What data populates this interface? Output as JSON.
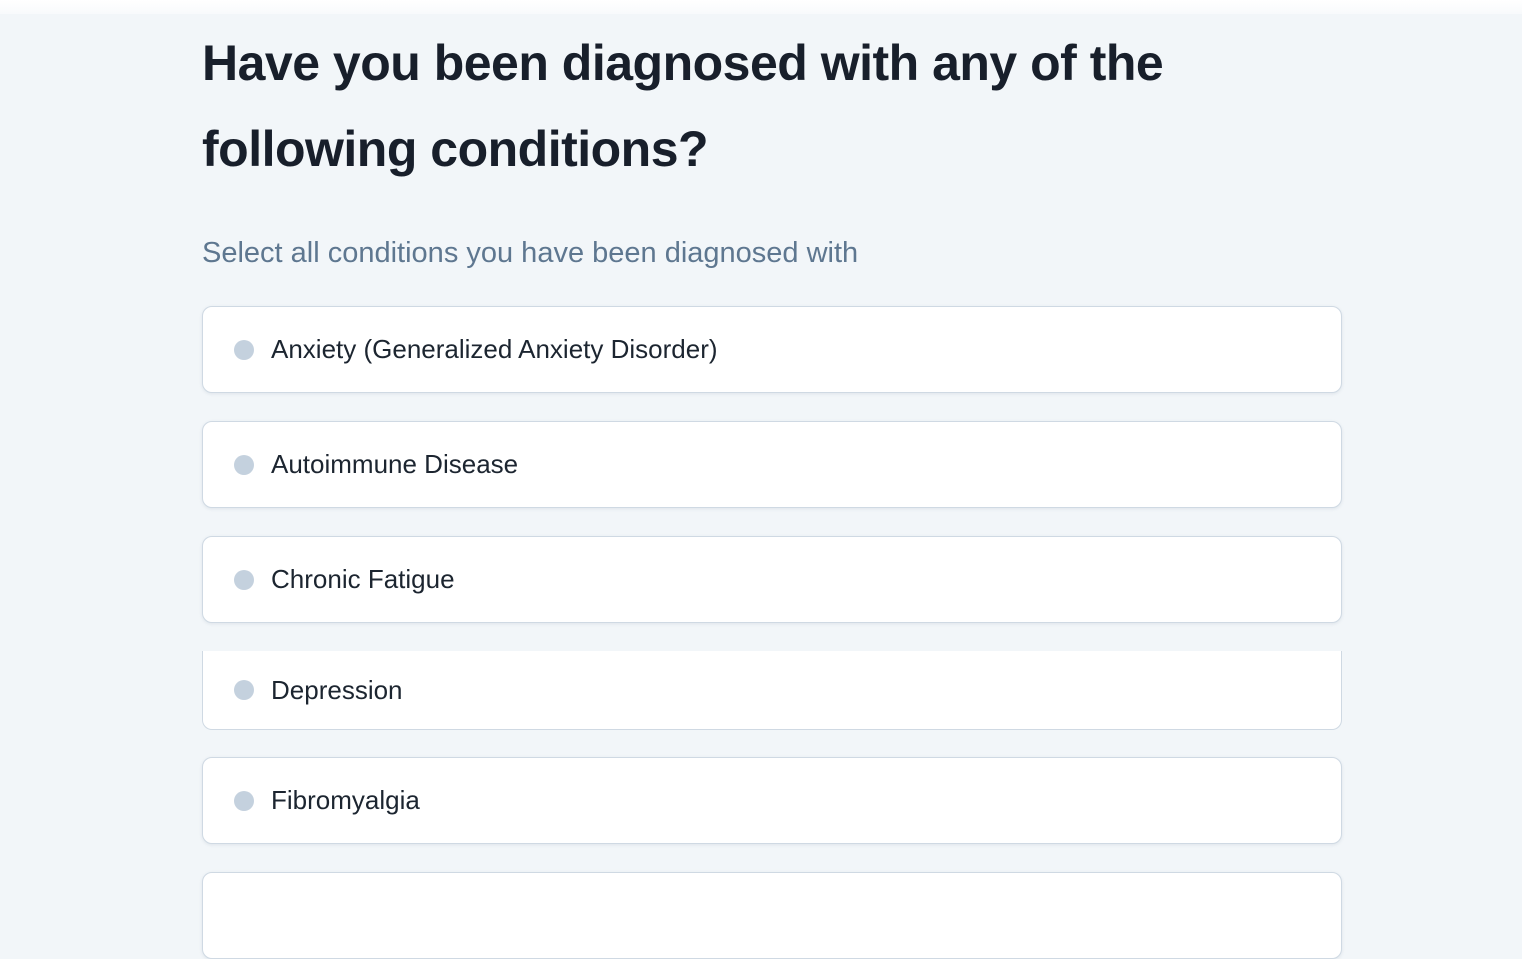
{
  "page": {
    "question": "Have you been diagnosed with any of the following conditions?",
    "subtitle": "Select all conditions you have been diagnosed with"
  },
  "options": [
    {
      "label": "Anxiety (Generalized Anxiety Disorder)",
      "selected": false
    },
    {
      "label": "Autoimmune Disease",
      "selected": false
    },
    {
      "label": "Chronic Fatigue",
      "selected": false
    },
    {
      "label": "Depression",
      "selected": false,
      "clipped_top": true
    },
    {
      "label": "Fibromyalgia",
      "selected": false
    },
    {
      "label": "",
      "selected": false,
      "partially_visible": true
    }
  ],
  "colors": {
    "page_background": "#f2f6f9",
    "card_background": "#ffffff",
    "card_border": "#cfd9e3",
    "bullet": "#c4d1de",
    "heading_text": "#181f2b",
    "subtitle_text": "#5e7790",
    "option_text": "#1c2530"
  }
}
